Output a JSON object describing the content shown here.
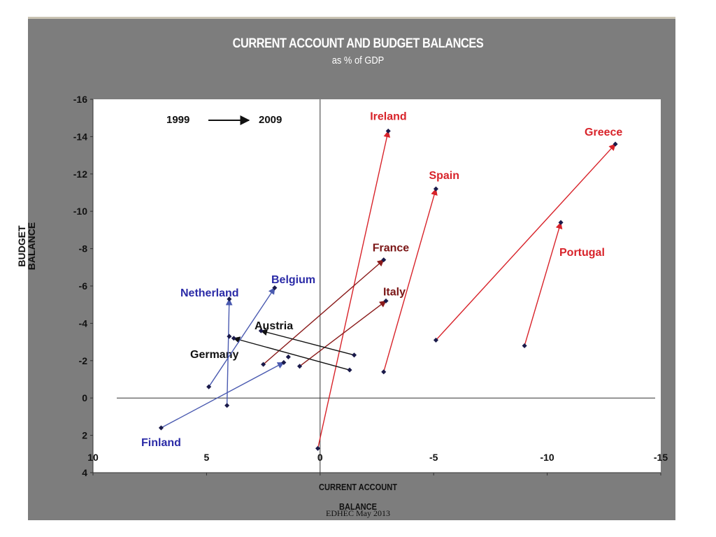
{
  "title": "CURRENT ACCOUNT AND BUDGET BALANCES",
  "subtitle": "as % of GDP",
  "footer": "EDHEC May 2013",
  "colors": {
    "eurozone_south": "#d8232a",
    "core_north": "#2b2ba7",
    "core_france_italy": "#8a1a1a",
    "black": "#111111",
    "background": "#7d7d7d",
    "plot_area": "#ffffff"
  },
  "chart_data": {
    "type": "scatter",
    "title": "CURRENT ACCOUNT AND BUDGET BALANCES",
    "subtitle": "as % of GDP",
    "xlabel": "CURRENT ACCOUNT BALANCE",
    "ylabel": "BUDGET BALANCE",
    "xlim": [
      10,
      -15
    ],
    "ylim": [
      4,
      -16
    ],
    "x_ticks": [
      10,
      5,
      0,
      -5,
      -10,
      -15
    ],
    "y_ticks": [
      -16,
      -14,
      -12,
      -10,
      -8,
      -6,
      -4,
      -2,
      0,
      2,
      4
    ],
    "grid": false,
    "legend_note": {
      "from": "1999",
      "to": "2009"
    },
    "series": [
      {
        "name": "Ireland",
        "color": "core_ireland_red",
        "from": [
          0.1,
          2.7
        ],
        "to": [
          -3.0,
          -14.3
        ]
      },
      {
        "name": "Spain",
        "color": "red",
        "from": [
          -2.8,
          -1.4
        ],
        "to": [
          -5.1,
          -11.2
        ]
      },
      {
        "name": "Greece",
        "color": "red",
        "from": [
          -5.1,
          -3.1
        ],
        "to": [
          -13.0,
          -13.6
        ]
      },
      {
        "name": "Portugal",
        "color": "red",
        "from": [
          -9.0,
          -2.8
        ],
        "to": [
          -10.6,
          -9.4
        ]
      },
      {
        "name": "France",
        "color": "darkred",
        "from": [
          2.5,
          -1.8
        ],
        "to": [
          -2.8,
          -7.4
        ]
      },
      {
        "name": "Italy",
        "color": "darkred",
        "from": [
          0.9,
          -1.7
        ],
        "to": [
          -2.9,
          -5.2
        ]
      },
      {
        "name": "Austria",
        "color": "black",
        "from": [
          -1.5,
          -2.3
        ],
        "to": [
          2.6,
          -3.6
        ]
      },
      {
        "name": "Germany",
        "color": "black",
        "from": [
          -1.3,
          -1.5
        ],
        "to": [
          3.8,
          -3.2
        ]
      },
      {
        "name": "Netherland",
        "color": "blue",
        "from": [
          4.1,
          0.4
        ],
        "to": [
          4.0,
          -5.3
        ]
      },
      {
        "name": "Belgium",
        "color": "blue",
        "from": [
          4.9,
          -0.6
        ],
        "to": [
          2.0,
          -5.9
        ]
      },
      {
        "name": "Finland",
        "color": "blue",
        "from": [
          7.0,
          1.6
        ],
        "to": [
          1.6,
          -1.9
        ]
      }
    ],
    "extra_points": [
      [
        4.0,
        -3.3
      ],
      [
        1.4,
        -2.2
      ]
    ]
  }
}
